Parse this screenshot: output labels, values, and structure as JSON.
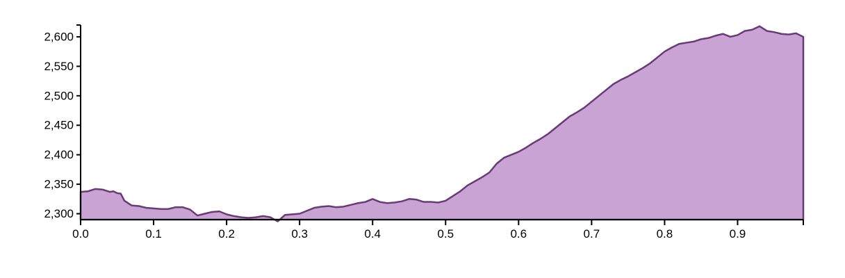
{
  "colors": {
    "area_fill": "#c9a3d3",
    "area_stroke": "#6a3a77",
    "axis": "#000000"
  },
  "chart_data": {
    "type": "area",
    "title": "",
    "xlabel": "",
    "ylabel": "",
    "xlim": [
      0,
      0.99
    ],
    "ylim": [
      2290,
      2620
    ],
    "grid": false,
    "legend": "none",
    "x_ticks": [
      0.0,
      0.1,
      0.2,
      0.3,
      0.4,
      0.5,
      0.6,
      0.7,
      0.8,
      0.9
    ],
    "x_tick_labels": [
      "0.0",
      "0.1",
      "0.2",
      "0.3",
      "0.4",
      "0.5",
      "0.6",
      "0.7",
      "0.8",
      "0.9"
    ],
    "y_ticks": [
      2300,
      2350,
      2400,
      2450,
      2500,
      2550,
      2600
    ],
    "y_tick_labels": [
      "2,300",
      "2,350",
      "2,400",
      "2,450",
      "2,500",
      "2,550",
      "2,600"
    ],
    "series": [
      {
        "x": [
          0.0,
          0.01,
          0.02,
          0.03,
          0.04,
          0.045,
          0.05,
          0.055,
          0.06,
          0.07,
          0.08,
          0.09,
          0.1,
          0.11,
          0.12,
          0.13,
          0.14,
          0.15,
          0.16,
          0.17,
          0.18,
          0.19,
          0.2,
          0.21,
          0.22,
          0.23,
          0.24,
          0.25,
          0.26,
          0.27,
          0.28,
          0.29,
          0.3,
          0.31,
          0.32,
          0.33,
          0.34,
          0.35,
          0.36,
          0.37,
          0.38,
          0.39,
          0.4,
          0.41,
          0.42,
          0.43,
          0.44,
          0.45,
          0.46,
          0.47,
          0.48,
          0.49,
          0.5,
          0.51,
          0.52,
          0.53,
          0.54,
          0.55,
          0.56,
          0.57,
          0.58,
          0.59,
          0.6,
          0.61,
          0.62,
          0.63,
          0.64,
          0.65,
          0.66,
          0.67,
          0.68,
          0.69,
          0.7,
          0.71,
          0.72,
          0.73,
          0.74,
          0.75,
          0.76,
          0.77,
          0.78,
          0.79,
          0.8,
          0.81,
          0.82,
          0.83,
          0.84,
          0.85,
          0.86,
          0.87,
          0.88,
          0.89,
          0.9,
          0.91,
          0.92,
          0.93,
          0.94,
          0.95,
          0.96,
          0.97,
          0.98,
          0.99
        ],
        "y": [
          2337,
          2338,
          2342,
          2341,
          2337,
          2338,
          2335,
          2334,
          2322,
          2314,
          2313,
          2310,
          2309,
          2308,
          2308,
          2311,
          2311,
          2307,
          2297,
          2300,
          2303,
          2304,
          2299,
          2296,
          2294,
          2293,
          2294,
          2296,
          2294,
          2287,
          2298,
          2299,
          2300,
          2305,
          2310,
          2312,
          2313,
          2311,
          2312,
          2315,
          2318,
          2320,
          2325,
          2320,
          2318,
          2319,
          2321,
          2325,
          2324,
          2320,
          2320,
          2319,
          2322,
          2330,
          2338,
          2348,
          2355,
          2362,
          2370,
          2385,
          2395,
          2400,
          2405,
          2412,
          2420,
          2427,
          2435,
          2445,
          2455,
          2465,
          2472,
          2480,
          2490,
          2500,
          2510,
          2520,
          2527,
          2533,
          2540,
          2547,
          2555,
          2565,
          2575,
          2582,
          2588,
          2590,
          2592,
          2596,
          2598,
          2602,
          2605,
          2600,
          2603,
          2610,
          2612,
          2618,
          2610,
          2608,
          2605,
          2604,
          2606,
          2600
        ]
      }
    ]
  }
}
